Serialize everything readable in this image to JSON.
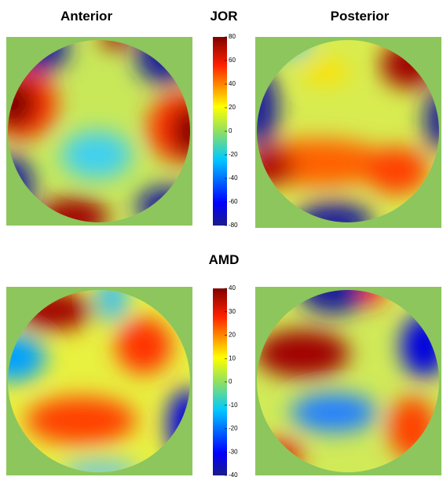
{
  "column_titles": [
    "Anterior",
    "Posterior"
  ],
  "panels": [
    {
      "title": "JOR",
      "colorbar": {
        "lim": [
          -80,
          80
        ],
        "ticks": [
          -80,
          -60,
          -40,
          -20,
          0,
          20,
          40,
          60,
          80
        ]
      }
    },
    {
      "title": "AMD",
      "colorbar": {
        "lim": [
          -40,
          40
        ],
        "ticks": [
          -40,
          -30,
          -20,
          -10,
          0,
          10,
          20,
          30,
          40
        ]
      }
    }
  ]
}
